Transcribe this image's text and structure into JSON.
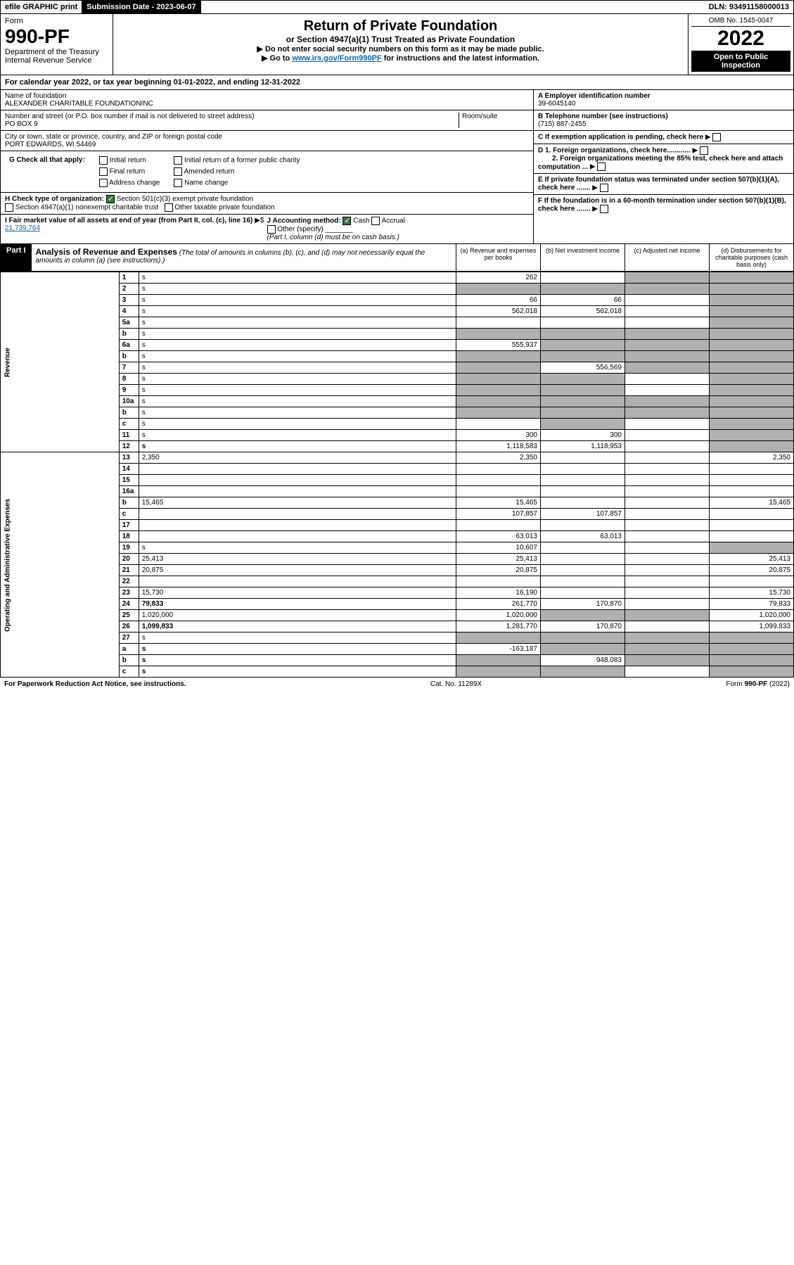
{
  "topbar": {
    "efile": "efile GRAPHIC print",
    "submission": "Submission Date - 2023-06-07",
    "dln": "DLN: 93491158000013"
  },
  "header": {
    "form_label": "Form",
    "form_num": "990-PF",
    "dept": "Department of the Treasury",
    "irs": "Internal Revenue Service",
    "title": "Return of Private Foundation",
    "subtitle": "or Section 4947(a)(1) Trust Treated as Private Foundation",
    "instr1": "▶ Do not enter social security numbers on this form as it may be made public.",
    "instr2_pre": "▶ Go to ",
    "instr2_link": "www.irs.gov/Form990PF",
    "instr2_post": " for instructions and the latest information.",
    "omb": "OMB No. 1545-0047",
    "year": "2022",
    "open_pub": "Open to Public Inspection"
  },
  "cal_year": {
    "text_pre": "For calendar year 2022, or tax year beginning ",
    "begin": "01-01-2022",
    "text_mid": ", and ending ",
    "end": "12-31-2022"
  },
  "foundation": {
    "name_label": "Name of foundation",
    "name": "ALEXANDER CHARITABLE FOUNDATIONINC",
    "addr_label": "Number and street (or P.O. box number if mail is not delivered to street address)",
    "addr": "PO BOX 9",
    "room_label": "Room/suite",
    "city_label": "City or town, state or province, country, and ZIP or foreign postal code",
    "city": "PORT EDWARDS, WI  54469",
    "ein_label": "A Employer identification number",
    "ein": "39-6045140",
    "phone_label": "B Telephone number (see instructions)",
    "phone": "(715) 887-2455",
    "c_label": "C If exemption application is pending, check here",
    "d1": "D 1. Foreign organizations, check here............",
    "d2": "2. Foreign organizations meeting the 85% test, check here and attach computation ...",
    "e_label": "E  If private foundation status was terminated under section 507(b)(1)(A), check here .......",
    "f_label": "F  If the foundation is in a 60-month termination under section 507(b)(1)(B), check here .......",
    "g_label": "G Check all that apply:",
    "g_opts": [
      "Initial return",
      "Final return",
      "Address change",
      "Initial return of a former public charity",
      "Amended return",
      "Name change"
    ],
    "h_label": "H Check type of organization:",
    "h_opt1": "Section 501(c)(3) exempt private foundation",
    "h_opt2": "Section 4947(a)(1) nonexempt charitable trust",
    "h_opt3": "Other taxable private foundation",
    "i_label": "I Fair market value of all assets at end of year (from Part II, col. (c), line 16)",
    "i_val": "21,739,764",
    "j_label": "J Accounting method:",
    "j_opts": [
      "Cash",
      "Accrual"
    ],
    "j_other": "Other (specify)",
    "j_note": "(Part I, column (d) must be on cash basis.)"
  },
  "part1": {
    "label": "Part I",
    "title": "Analysis of Revenue and Expenses",
    "note": "(The total of amounts in columns (b), (c), and (d) may not necessarily equal the amounts in column (a) (see instructions).)",
    "cols": {
      "a": "(a)   Revenue and expenses per books",
      "b": "(b)   Net investment income",
      "c": "(c)   Adjusted net income",
      "d": "(d)   Disbursements for charitable purposes (cash basis only)"
    }
  },
  "rev_label": "Revenue",
  "exp_label": "Operating and Administrative Expenses",
  "rows": [
    {
      "n": "1",
      "d": "s",
      "a": "262",
      "b": "",
      "c": "s"
    },
    {
      "n": "2",
      "d": "s",
      "a": "s",
      "b": "s",
      "c": "s",
      "bold_not": true
    },
    {
      "n": "3",
      "d": "s",
      "a": "66",
      "b": "66",
      "c": ""
    },
    {
      "n": "4",
      "d": "s",
      "a": "562,018",
      "b": "562,018",
      "c": ""
    },
    {
      "n": "5a",
      "d": "s",
      "a": "",
      "b": "",
      "c": ""
    },
    {
      "n": "b",
      "d": "s",
      "a": "s",
      "b": "s",
      "c": "s"
    },
    {
      "n": "6a",
      "d": "s",
      "a": "555,937",
      "b": "s",
      "c": "s"
    },
    {
      "n": "b",
      "d": "s",
      "a": "s",
      "b": "s",
      "c": "s"
    },
    {
      "n": "7",
      "d": "s",
      "a": "s",
      "b": "556,569",
      "c": "s"
    },
    {
      "n": "8",
      "d": "s",
      "a": "s",
      "b": "s",
      "c": ""
    },
    {
      "n": "9",
      "d": "s",
      "a": "s",
      "b": "s",
      "c": ""
    },
    {
      "n": "10a",
      "d": "s",
      "a": "s",
      "b": "s",
      "c": "s"
    },
    {
      "n": "b",
      "d": "s",
      "a": "s",
      "b": "s",
      "c": "s"
    },
    {
      "n": "c",
      "d": "s",
      "a": "",
      "b": "s",
      "c": ""
    },
    {
      "n": "11",
      "d": "s",
      "a": "300",
      "b": "300",
      "c": ""
    },
    {
      "n": "12",
      "d": "s",
      "a": "1,118,583",
      "b": "1,118,953",
      "c": "",
      "bold": true
    },
    {
      "n": "13",
      "d": "2,350",
      "a": "2,350",
      "b": "",
      "c": "",
      "sec": "exp"
    },
    {
      "n": "14",
      "d": "",
      "a": "",
      "b": "",
      "c": ""
    },
    {
      "n": "15",
      "d": "",
      "a": "",
      "b": "",
      "c": ""
    },
    {
      "n": "16a",
      "d": "",
      "a": "",
      "b": "",
      "c": ""
    },
    {
      "n": "b",
      "d": "15,465",
      "a": "15,465",
      "b": "",
      "c": ""
    },
    {
      "n": "c",
      "d": "",
      "a": "107,857",
      "b": "107,857",
      "c": ""
    },
    {
      "n": "17",
      "d": "",
      "a": "",
      "b": "",
      "c": ""
    },
    {
      "n": "18",
      "d": "",
      "a": "63,013",
      "b": "63,013",
      "c": ""
    },
    {
      "n": "19",
      "d": "s",
      "a": "10,607",
      "b": "",
      "c": ""
    },
    {
      "n": "20",
      "d": "25,413",
      "a": "25,413",
      "b": "",
      "c": ""
    },
    {
      "n": "21",
      "d": "20,875",
      "a": "20,875",
      "b": "",
      "c": ""
    },
    {
      "n": "22",
      "d": "",
      "a": "",
      "b": "",
      "c": ""
    },
    {
      "n": "23",
      "d": "15,730",
      "a": "16,190",
      "b": "",
      "c": ""
    },
    {
      "n": "24",
      "d": "79,833",
      "a": "261,770",
      "b": "170,870",
      "c": "",
      "bold": true
    },
    {
      "n": "25",
      "d": "1,020,000",
      "a": "1,020,000",
      "b": "s",
      "c": "s"
    },
    {
      "n": "26",
      "d": "1,099,833",
      "a": "1,281,770",
      "b": "170,870",
      "c": "",
      "bold": true
    },
    {
      "n": "27",
      "d": "s",
      "a": "s",
      "b": "s",
      "c": "s"
    },
    {
      "n": "a",
      "d": "s",
      "a": "-163,187",
      "b": "s",
      "c": "s",
      "bold": true
    },
    {
      "n": "b",
      "d": "s",
      "a": "s",
      "b": "948,083",
      "c": "s",
      "bold": true
    },
    {
      "n": "c",
      "d": "s",
      "a": "s",
      "b": "s",
      "c": "",
      "bold": true
    }
  ],
  "footer": {
    "left": "For Paperwork Reduction Act Notice, see instructions.",
    "center": "Cat. No. 11289X",
    "right": "Form 990-PF (2022)"
  },
  "colors": {
    "link": "#0066cc",
    "shaded": "#b0b0b0",
    "black": "#000000",
    "check_green": "#2e7d32"
  }
}
